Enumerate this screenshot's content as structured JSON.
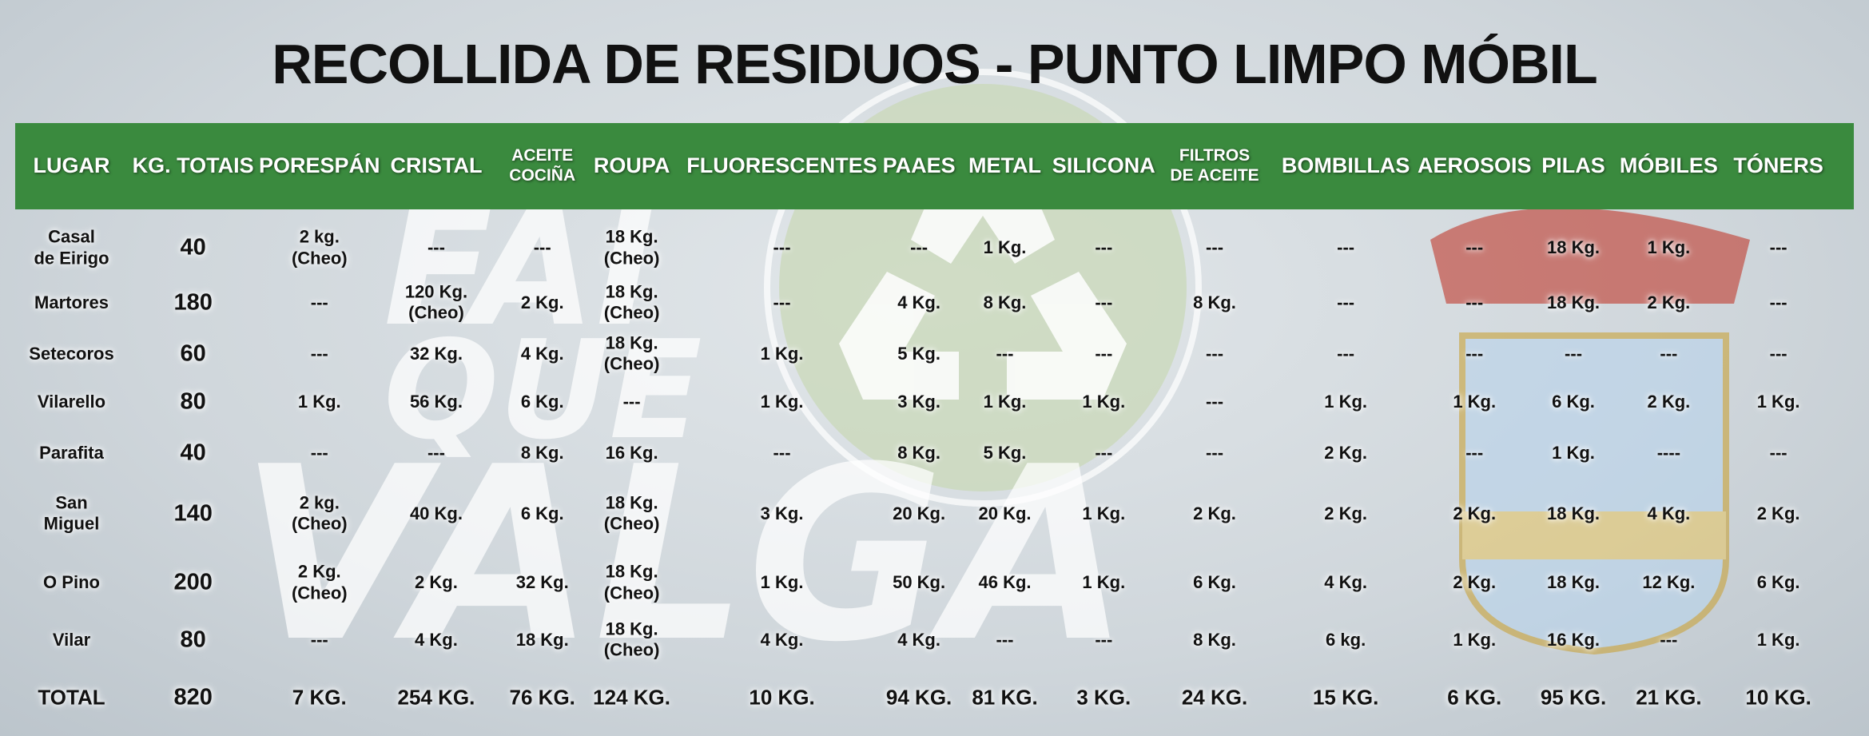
{
  "title": "RECOLLIDA DE RESIDUOS - PUNTO LIMPO MÓBIL",
  "watermark": [
    "FAI",
    "QUE",
    "VALGA"
  ],
  "table": {
    "header": [
      "LUGAR",
      "KG. TOTAIS",
      "PORESPÁN",
      "CRISTAL",
      "ACEITE\nCOCIÑA",
      "ROUPA",
      "FLUORESCENTES",
      "PAAES",
      "METAL",
      "SILICONA",
      "FILTROS\nDE ACEITE",
      "BOMBILLAS",
      "AEROSOIS",
      "PILAS",
      "MÓBILES",
      "TÓNERS"
    ],
    "rows": [
      [
        "Casal\nde Eirigo",
        40,
        "2 kg.\n(Cheo)",
        "---",
        "---",
        "18 Kg.\n(Cheo)",
        "---",
        "---",
        "1 Kg.",
        "---",
        "---",
        "---",
        "---",
        "18 Kg.",
        "1 Kg.",
        "---"
      ],
      [
        "Martores",
        180,
        "---",
        "120 Kg.\n(Cheo)",
        "2 Kg.",
        "18 Kg.\n(Cheo)",
        "---",
        "4 Kg.",
        "8 Kg.",
        "---",
        "8 Kg.",
        "---",
        "---",
        "18 Kg.",
        "2 Kg.",
        "---"
      ],
      [
        "Setecoros",
        60,
        "---",
        "32 Kg.",
        "4 Kg.",
        "18 Kg.\n(Cheo)",
        "1 Kg.",
        "5 Kg.",
        "---",
        "---",
        "---",
        "---",
        "---",
        "---",
        "---",
        "---"
      ],
      [
        "Vilarello",
        80,
        "1 Kg.",
        "56 Kg.",
        "6 Kg.",
        "---",
        "1 Kg.",
        "3 Kg.",
        "1 Kg.",
        "1 Kg.",
        "---",
        "1 Kg.",
        "1 Kg.",
        "6 Kg.",
        "2 Kg.",
        "1 Kg."
      ],
      [
        "Parafita",
        40,
        "---",
        "---",
        "8 Kg.",
        "16 Kg.",
        "---",
        "8 Kg.",
        "5 Kg.",
        "---",
        "---",
        "2 Kg.",
        "---",
        "1 Kg.",
        "----",
        "---"
      ],
      [
        "San\nMiguel",
        140,
        "2 kg.\n(Cheo)",
        "40 Kg.",
        "6 Kg.",
        "18 Kg.\n(Cheo)",
        "3 Kg.",
        "20 Kg.",
        "20 Kg.",
        "1 Kg.",
        "2 Kg.",
        "2 Kg.",
        "2 Kg.",
        "18 Kg.",
        "4 Kg.",
        "2 Kg."
      ],
      [
        "O Pino",
        200,
        "2 Kg.\n(Cheo)",
        "2 Kg.",
        "32 Kg.",
        "18 Kg.\n(Cheo)",
        "1 Kg.",
        "50 Kg.",
        "46 Kg.",
        "1 Kg.",
        "6 Kg.",
        "4 Kg.",
        "2 Kg.",
        "18 Kg.",
        "12 Kg.",
        "6 Kg."
      ],
      [
        "Vilar",
        80,
        "---",
        "4 Kg.",
        "18 Kg.",
        "18 Kg.\n(Cheo)",
        "4 Kg.",
        "4 Kg.",
        "---",
        "---",
        "8 Kg.",
        "6 kg.",
        "1 Kg.",
        "16 Kg.",
        "---",
        "1 Kg."
      ],
      [
        "TOTAL",
        820,
        "7 KG.",
        "254 KG.",
        "76 KG.",
        "124 KG.",
        "10 KG.",
        "94 KG.",
        "81 KG.",
        "3 KG.",
        "24 KG.",
        "15 KG.",
        "6 KG.",
        "95 KG.",
        "21 KG.",
        "10 KG."
      ]
    ]
  }
}
